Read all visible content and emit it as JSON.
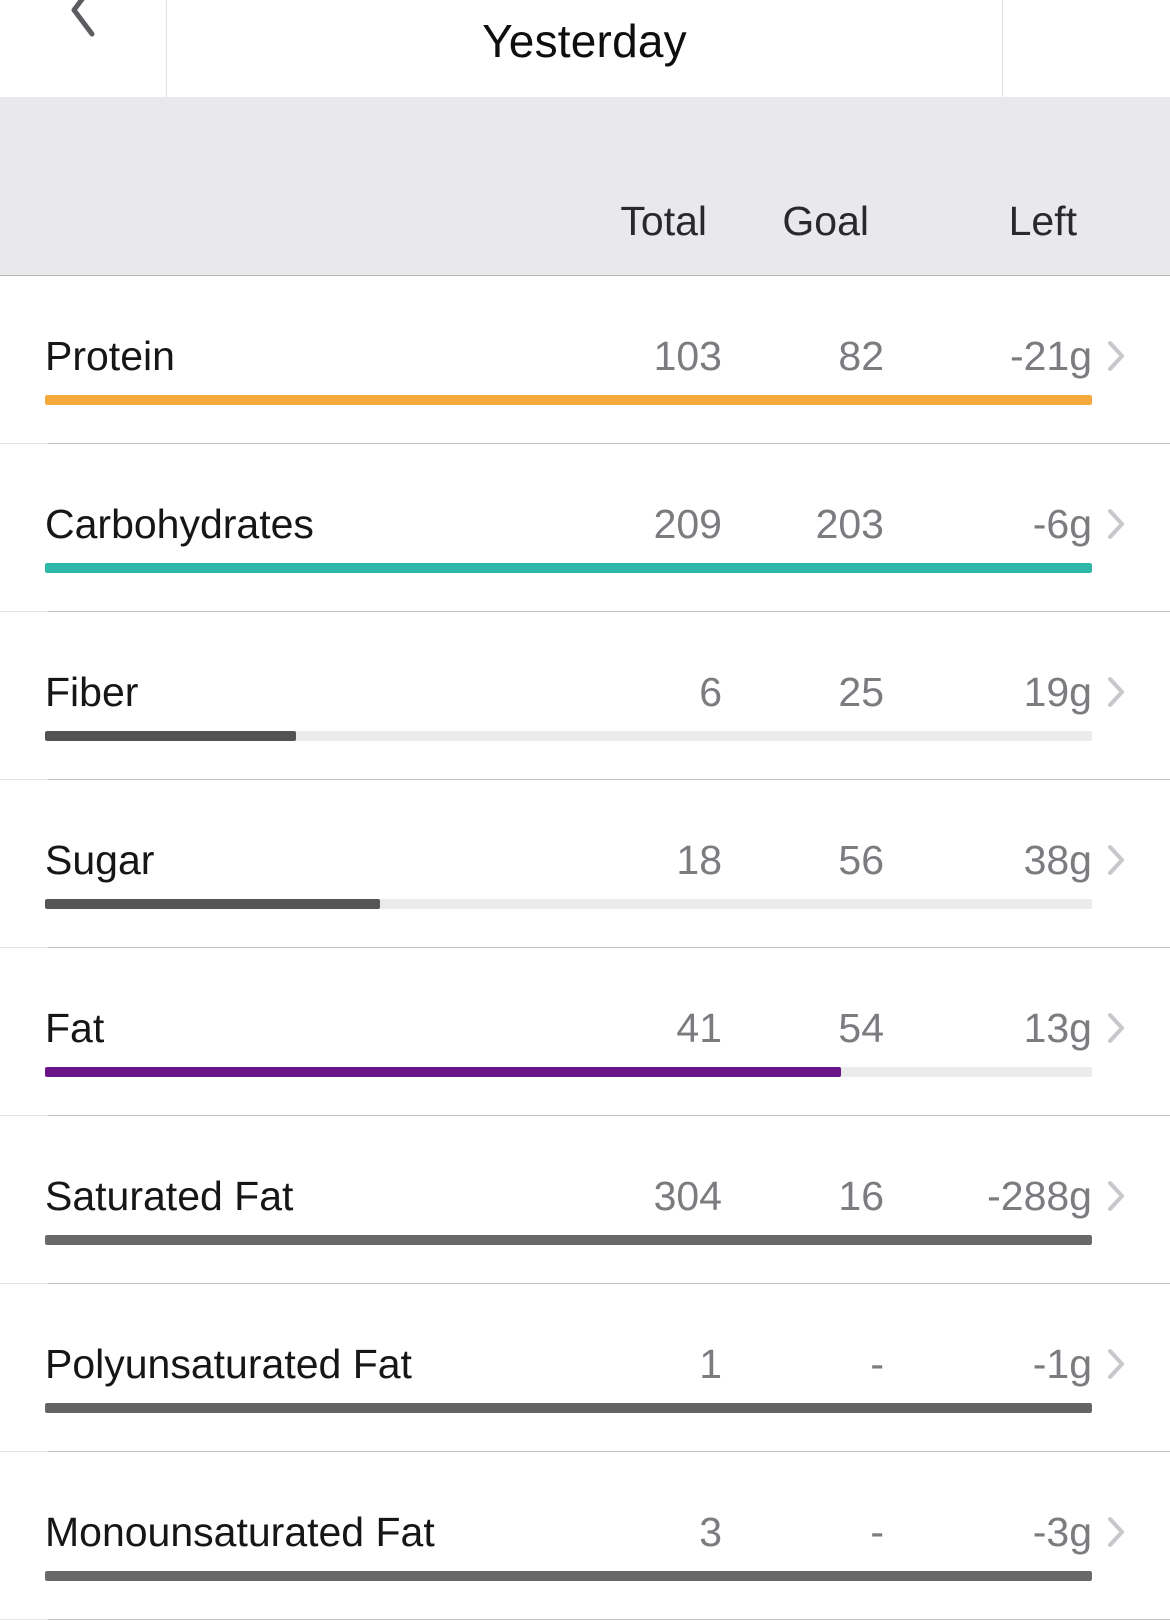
{
  "nav": {
    "title": "Yesterday",
    "prev_icon": "chevron-left-icon",
    "next_icon": "chevron-right-icon"
  },
  "header": {
    "columns": {
      "total": "Total",
      "goal": "Goal",
      "left": "Left"
    }
  },
  "rows": [
    {
      "label": "Protein",
      "total": "103",
      "goal": "82",
      "left": "-21g",
      "bar_color": "#F6A93C",
      "bar_percent": 100
    },
    {
      "label": "Carbohydrates",
      "total": "209",
      "goal": "203",
      "left": "-6g",
      "bar_color": "#2EB8A7",
      "bar_percent": 100
    },
    {
      "label": "Fiber",
      "total": "6",
      "goal": "25",
      "left": "19g",
      "bar_color": "#525254",
      "bar_percent": 24
    },
    {
      "label": "Sugar",
      "total": "18",
      "goal": "56",
      "left": "38g",
      "bar_color": "#565658",
      "bar_percent": 32
    },
    {
      "label": "Fat",
      "total": "41",
      "goal": "54",
      "left": "13g",
      "bar_color": "#6C1287",
      "bar_percent": 76
    },
    {
      "label": "Saturated Fat",
      "total": "304",
      "goal": "16",
      "left": "-288g",
      "bar_color": "#69696B",
      "bar_percent": 100
    },
    {
      "label": "Polyunsaturated Fat",
      "total": "1",
      "goal": "-",
      "left": "-1g",
      "bar_color": "#646466",
      "bar_percent": 100
    },
    {
      "label": "Monounsaturated Fat",
      "total": "3",
      "goal": "-",
      "left": "-3g",
      "bar_color": "#69696B",
      "bar_percent": 100
    }
  ],
  "icons": {
    "row_disclosure": "chevron-right-icon"
  },
  "colors": {
    "header_bg": "#E9E9EC",
    "header_border": "#B6B6BA",
    "row_divider": "#C2C2C5",
    "label_text": "#161618",
    "value_text": "#7B7B80",
    "bar_track": "#EBEBEC",
    "row_chevron": "#C7C7CC",
    "nav_chevron": "#5C5C60",
    "protein_bar": "#F6A93C",
    "carbs_bar": "#2EB8A7",
    "fat_bar": "#6C1287"
  }
}
